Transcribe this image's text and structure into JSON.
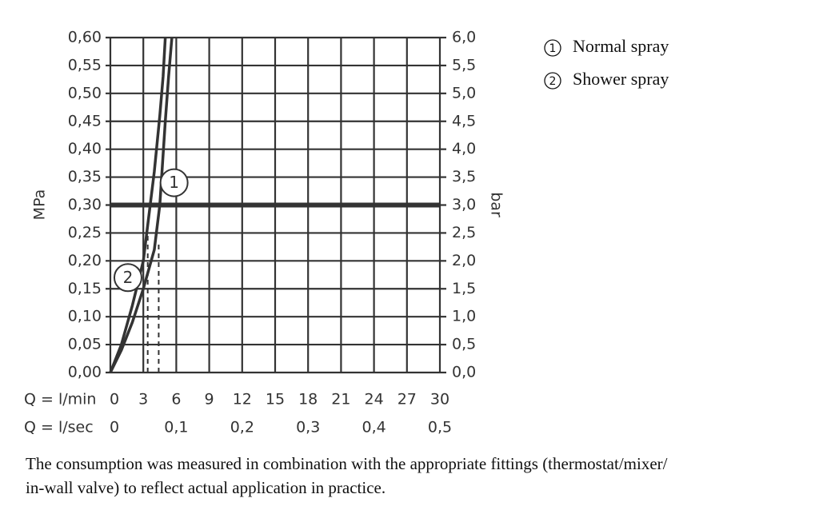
{
  "chart_data": {
    "type": "line",
    "ylabel": "MPa",
    "y2label": "bar",
    "xlabel": "Q = l/min",
    "x2label": "Q = l/sec",
    "xlim": [
      0,
      30
    ],
    "xticks": [
      0,
      3,
      6,
      9,
      12,
      15,
      18,
      21,
      24,
      27,
      30
    ],
    "x2lim": [
      0,
      0.5
    ],
    "x2ticks": [
      0,
      {
        "value": 0.1,
        "label": "0,1"
      },
      {
        "value": 0.2,
        "label": "0,2"
      },
      {
        "value": 0.3,
        "label": "0,3"
      },
      {
        "value": 0.4,
        "label": "0,4"
      },
      {
        "value": 0.5,
        "label": "0,5"
      }
    ],
    "ylim": [
      0,
      0.6
    ],
    "yticks": [
      {
        "value": 0,
        "label": "0,00"
      },
      {
        "value": 0.05,
        "label": "0,05"
      },
      {
        "value": 0.1,
        "label": "0,10"
      },
      {
        "value": 0.15,
        "label": "0,15"
      },
      {
        "value": 0.2,
        "label": "0,20"
      },
      {
        "value": 0.25,
        "label": "0,25"
      },
      {
        "value": 0.3,
        "label": "0,30"
      },
      {
        "value": 0.35,
        "label": "0,35"
      },
      {
        "value": 0.4,
        "label": "0,40"
      },
      {
        "value": 0.45,
        "label": "0,45"
      },
      {
        "value": 0.5,
        "label": "0,50"
      },
      {
        "value": 0.55,
        "label": "0,55"
      },
      {
        "value": 0.6,
        "label": "0,60"
      }
    ],
    "y2lim": [
      0,
      6
    ],
    "y2ticks": [
      {
        "value": 0,
        "label": "0,0"
      },
      {
        "value": 0.5,
        "label": "0,5"
      },
      {
        "value": 1,
        "label": "1,0"
      },
      {
        "value": 1.5,
        "label": "1,5"
      },
      {
        "value": 2,
        "label": "2,0"
      },
      {
        "value": 2.5,
        "label": "2,5"
      },
      {
        "value": 3,
        "label": "3,0"
      },
      {
        "value": 3.5,
        "label": "3,5"
      },
      {
        "value": 4,
        "label": "4,0"
      },
      {
        "value": 4.5,
        "label": "4,5"
      },
      {
        "value": 5,
        "label": "5,0"
      },
      {
        "value": 5.5,
        "label": "5,5"
      },
      {
        "value": 6,
        "label": "6,0"
      }
    ],
    "grid": true,
    "reference_line": 0.3,
    "flow_markers": [
      {
        "x": 3.4,
        "y": 0.25
      },
      {
        "x": 4.4,
        "y": 0.23
      }
    ],
    "series": [
      {
        "name": "Normal spray",
        "label": "1",
        "color": "#333333",
        "label_at": {
          "x": 5.8,
          "y": 0.34
        },
        "x": [
          0,
          1,
          2,
          3,
          4,
          4.5,
          5,
          5.3,
          5.6
        ],
        "values": [
          0,
          0.04,
          0.09,
          0.15,
          0.22,
          0.3,
          0.45,
          0.53,
          0.6
        ]
      },
      {
        "name": "Shower spray",
        "label": "2",
        "color": "#333333",
        "label_at": {
          "x": 1.6,
          "y": 0.17
        },
        "x": [
          0,
          1,
          2,
          3,
          3.5,
          4,
          4.5,
          4.8,
          5
        ],
        "values": [
          0,
          0.05,
          0.12,
          0.2,
          0.28,
          0.36,
          0.46,
          0.53,
          0.6
        ]
      }
    ],
    "caption": [
      "The consumption was measured in combination with the appropriate fittings (thermostat/mixer/",
      "in-wall valve) to reflect actual application in practice."
    ]
  }
}
